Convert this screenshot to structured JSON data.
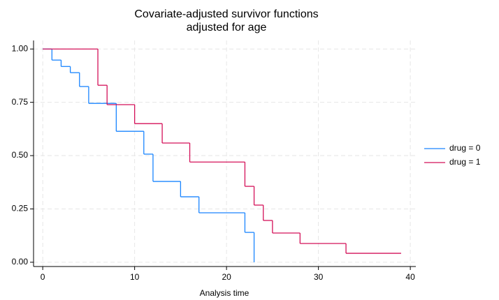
{
  "chart_data": {
    "type": "step",
    "title": "Covariate-adjusted survivor functions",
    "subtitle": "adjusted for age",
    "x_label": "Analysis time",
    "xlim": [
      -1,
      40.6
    ],
    "xticks": [
      0,
      10,
      20,
      30,
      40
    ],
    "ylim": [
      -0.02,
      1.04
    ],
    "yticks": [
      {
        "value": 0,
        "label": "0.00"
      },
      {
        "value": 0.25,
        "label": "0.25"
      },
      {
        "value": 0.5,
        "label": "0.50"
      },
      {
        "value": 0.75,
        "label": "0.75"
      },
      {
        "value": 1,
        "label": "1.00"
      }
    ],
    "grid": true,
    "legend": "right",
    "series": [
      {
        "name": "drug = 0",
        "color": "#1a85ff",
        "x": [
          0,
          1,
          2,
          3,
          4,
          5,
          8,
          11,
          12,
          15,
          17,
          22,
          23
        ],
        "values": [
          1,
          0.948,
          0.918,
          0.889,
          0.824,
          0.745,
          0.614,
          0.507,
          0.379,
          0.307,
          0.232,
          0.14,
          0
        ]
      },
      {
        "name": "drug = 1",
        "color": "#d41159",
        "x": [
          0,
          6,
          7,
          10,
          13,
          16,
          22,
          23,
          24,
          25,
          28,
          33,
          39
        ],
        "values": [
          1,
          0.83,
          0.739,
          0.65,
          0.559,
          0.47,
          0.356,
          0.268,
          0.196,
          0.137,
          0.088,
          0.042,
          0.042
        ]
      }
    ]
  }
}
